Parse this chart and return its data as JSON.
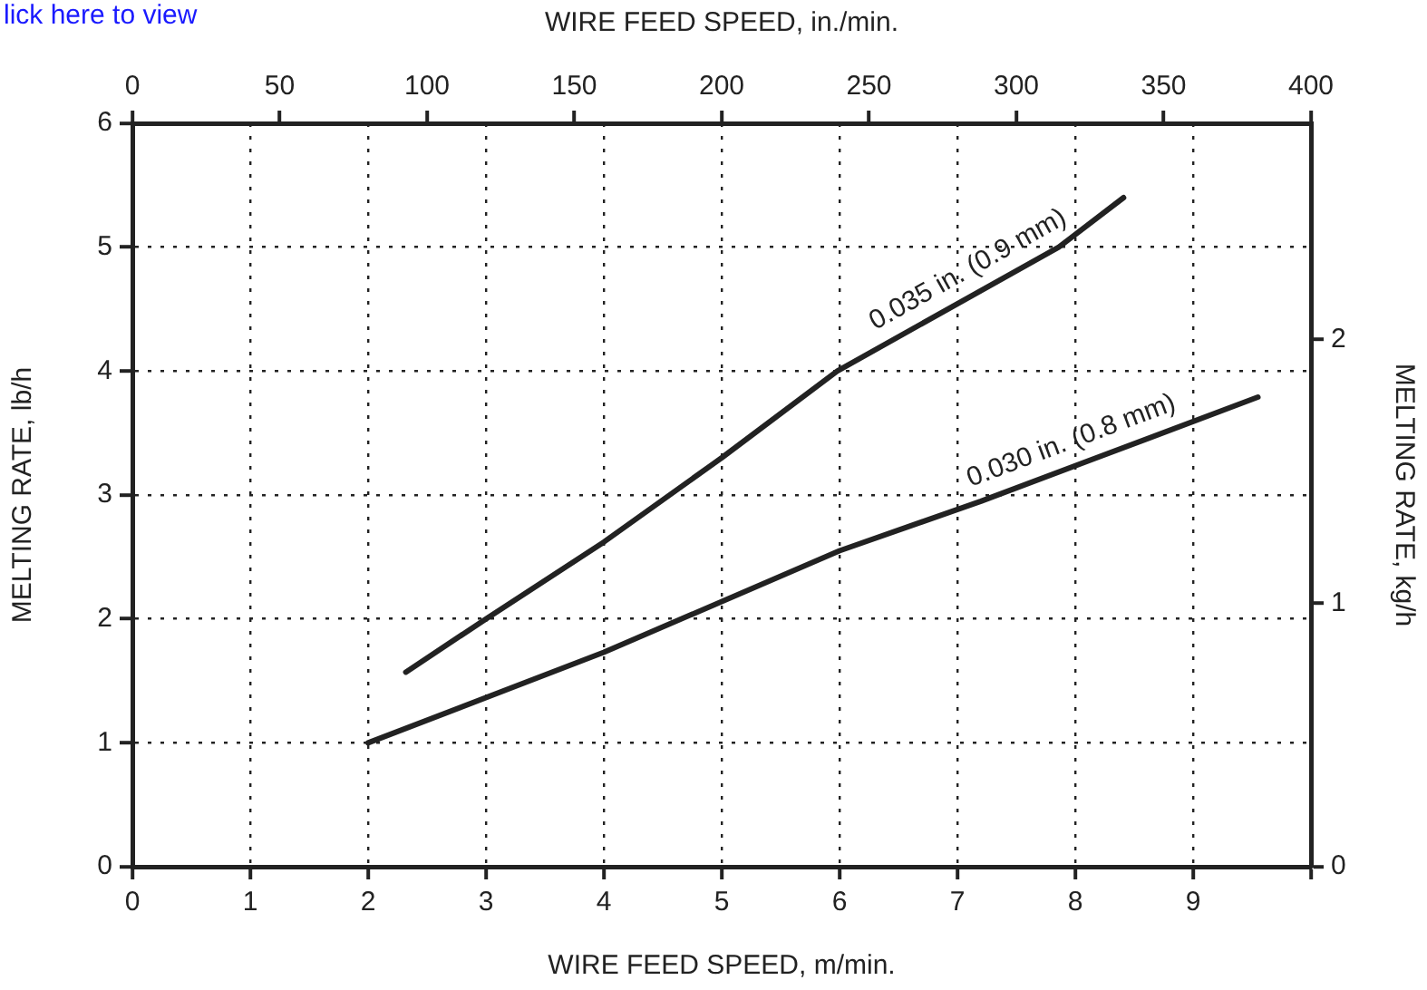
{
  "chart_data": {
    "type": "line",
    "xlabel": "WIRE FEED SPEED, m/min.",
    "x2label": "WIRE FEED SPEED, in./min.",
    "ylabel": "MELTING RATE, lb/h",
    "y2label": "MELTING RATE, kg/h",
    "xlim": [
      0,
      10
    ],
    "xticks": [
      0,
      1,
      2,
      3,
      4,
      5,
      6,
      7,
      8,
      9,
      {
        "value": 10,
        "label": null
      }
    ],
    "x2lim": [
      0,
      400
    ],
    "x2ticks": [
      0,
      50,
      100,
      150,
      200,
      250,
      300,
      350,
      400
    ],
    "ylim": [
      0,
      6
    ],
    "yticks": [
      0,
      1,
      2,
      3,
      4,
      5,
      6
    ],
    "y2lim": [
      0,
      2.82
    ],
    "y2ticks": [
      0,
      1,
      2
    ],
    "grid": true,
    "legend": false,
    "marker": "none",
    "line_style": "solid",
    "series": [
      {
        "name": "0.035 in. (0.9 mm)",
        "color": "#222222",
        "x": [
          2.32,
          3,
          4,
          5,
          5.98,
          7.86,
          8.41
        ],
        "values": [
          1.57,
          2.0,
          2.62,
          3.3,
          4.0,
          5.0,
          5.4
        ]
      },
      {
        "name": "0.030 in. (0.8 mm)",
        "color": "#222222",
        "x": [
          2,
          4,
          6,
          7.2,
          9.55
        ],
        "values": [
          1.0,
          1.73,
          2.55,
          2.95,
          3.79
        ]
      }
    ],
    "annotations": [
      "lick here to view"
    ]
  }
}
